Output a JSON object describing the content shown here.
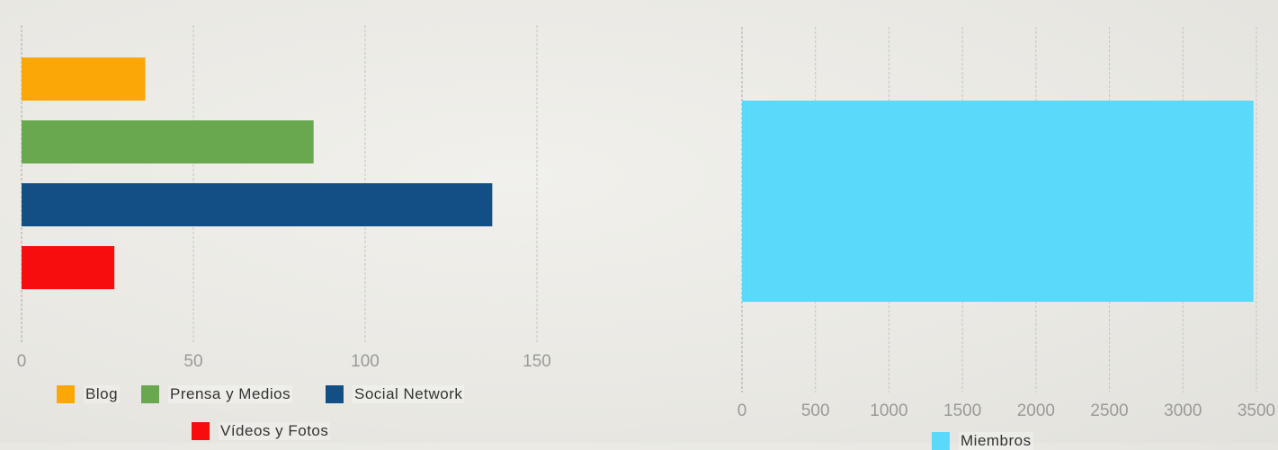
{
  "chart_data": [
    {
      "type": "bar",
      "orientation": "horizontal",
      "categories": [
        "Blog",
        "Prensa y Medios",
        "Social Network",
        "Vídeos y Fotos"
      ],
      "values": [
        36,
        85,
        137,
        27
      ],
      "colors": [
        "#fba708",
        "#6aa84f",
        "#134f85",
        "#f70d0d"
      ],
      "xticks": [
        0,
        50,
        100,
        150
      ],
      "xlim": [
        0,
        150
      ],
      "grid": true,
      "legend": {
        "position": "bottom",
        "entries": [
          "Blog",
          "Prensa y Medios",
          "Social Network",
          "Vídeos y Fotos"
        ]
      }
    },
    {
      "type": "bar",
      "orientation": "horizontal",
      "categories": [
        "Miembros"
      ],
      "values": [
        3480
      ],
      "colors": [
        "#5bd9fa"
      ],
      "xticks": [
        0,
        500,
        1000,
        1500,
        2000,
        2500,
        3000,
        3500
      ],
      "xlim": [
        0,
        3500
      ],
      "grid": true,
      "legend": {
        "position": "bottom",
        "entries": [
          "Miembros"
        ]
      }
    }
  ]
}
